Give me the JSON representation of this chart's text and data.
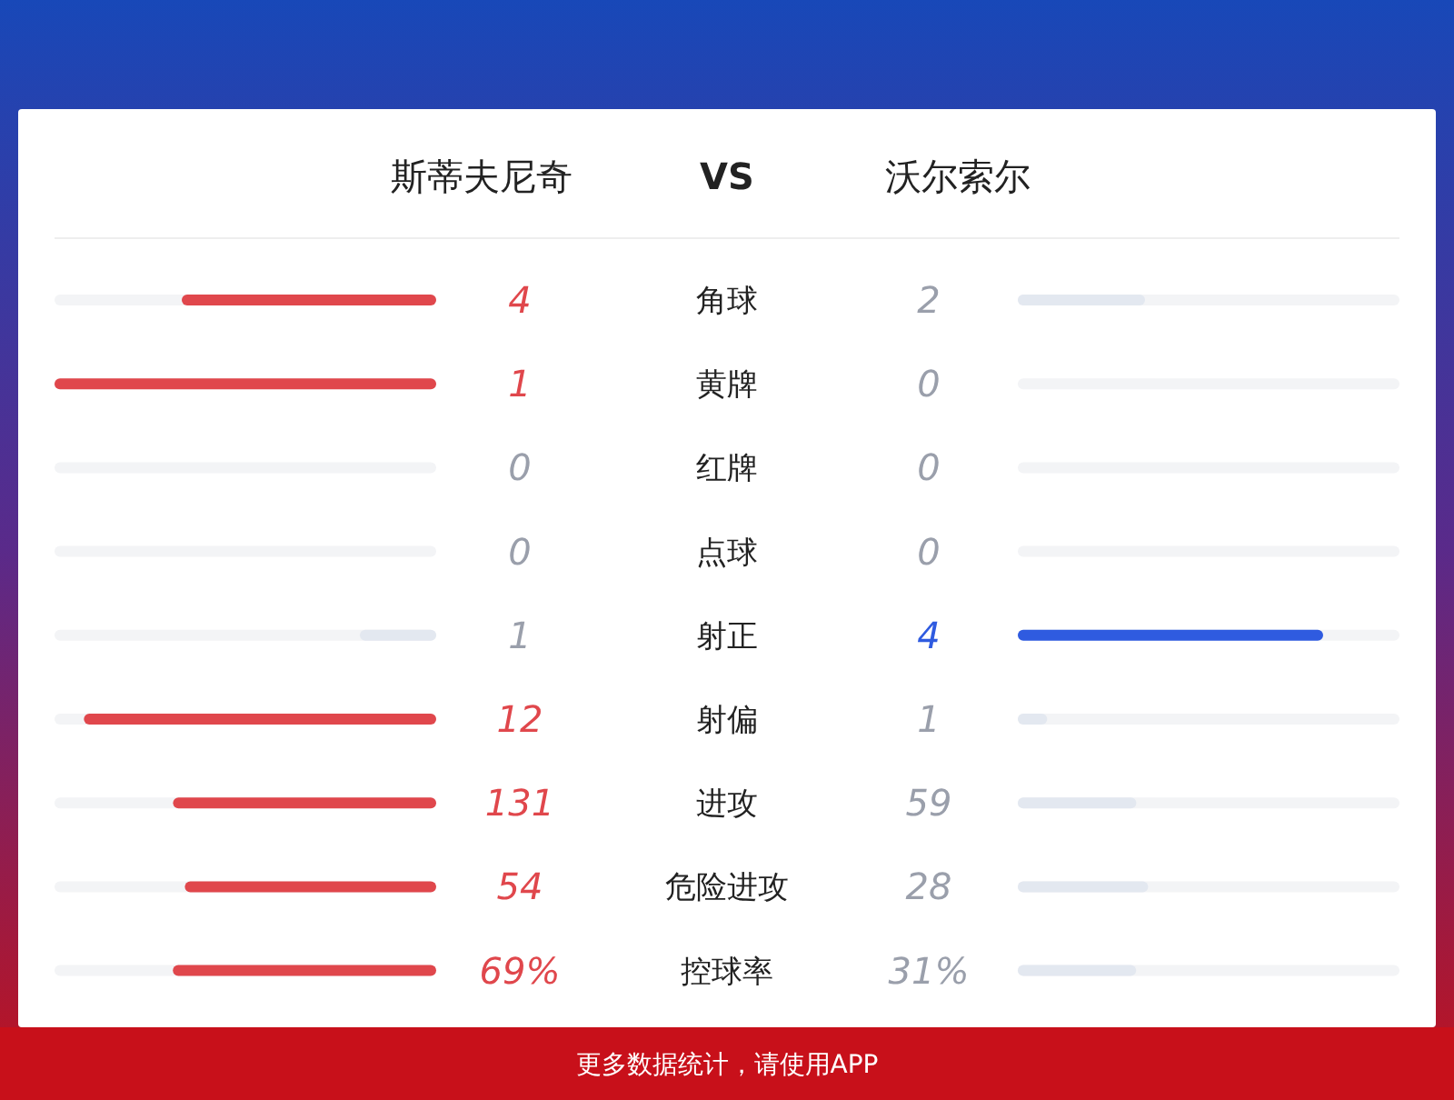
{
  "chart_data": {
    "type": "other",
    "categories": [
      "角球",
      "黄牌",
      "红牌",
      "点球",
      "射正",
      "射偏",
      "进攻",
      "危险进攻",
      "控球率"
    ],
    "series": [
      {
        "name": "斯蒂夫尼奇",
        "values": [
          4,
          1,
          0,
          0,
          1,
          12,
          131,
          54,
          69
        ],
        "value_labels": [
          "4",
          "1",
          "0",
          "0",
          "1",
          "12",
          "131",
          "54",
          "69%"
        ],
        "colors": [
          "#e0474c",
          "#e0474c",
          null,
          null,
          "#e3e8f0",
          "#e0474c",
          "#e0474c",
          "#e0474c",
          "#e0474c"
        ]
      },
      {
        "name": "沃尔索尔",
        "values": [
          2,
          0,
          0,
          0,
          4,
          1,
          59,
          28,
          31
        ],
        "value_labels": [
          "2",
          "0",
          "0",
          "0",
          "4",
          "1",
          "59",
          "28",
          "31%"
        ],
        "colors": [
          "#e3e8f0",
          null,
          null,
          null,
          "#2f5be0",
          "#e3e8f0",
          "#e3e8f0",
          "#e3e8f0",
          "#e3e8f0"
        ]
      }
    ],
    "annotations": [
      "VS",
      "更多数据统计，请使用APP"
    ]
  }
}
